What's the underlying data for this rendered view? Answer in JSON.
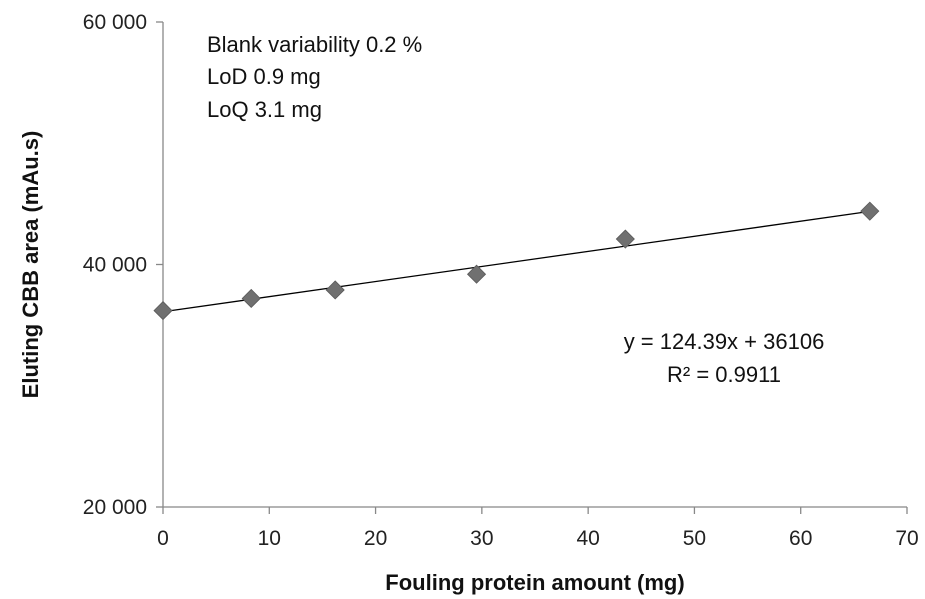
{
  "chart_data": {
    "type": "scatter",
    "xlabel": "Fouling protein amount (mg)",
    "ylabel": "Eluting CBB area (mAu.s)",
    "xlim": [
      0,
      70
    ],
    "ylim": [
      20000,
      60000
    ],
    "x_ticks": [
      0,
      10,
      20,
      30,
      40,
      50,
      60,
      70
    ],
    "x_tick_labels": [
      "0",
      "10",
      "20",
      "30",
      "40",
      "50",
      "60",
      "70"
    ],
    "y_ticks": [
      20000,
      40000,
      60000
    ],
    "y_tick_labels": [
      "20 000",
      "40 000",
      "60 000"
    ],
    "grid": false,
    "legend": "none",
    "series": [
      {
        "x": [
          0,
          8.3,
          16.2,
          29.5,
          43.5,
          66.5
        ],
        "y": [
          36200,
          37200,
          37900,
          39200,
          42100,
          44400
        ],
        "marker": "diamond",
        "color": "#707070"
      }
    ],
    "trendline": {
      "slope": 124.39,
      "intercept": 36106,
      "x_range": [
        0,
        66.5
      ],
      "color": "#000000"
    },
    "annotations": {
      "blank_variability": "Blank variability 0.2 %",
      "lod": "LoD 0.9 mg",
      "loq": "LoQ 3.1 mg",
      "equation": "y = 124.39x + 36106",
      "r_squared": "R² = 0.9911"
    }
  }
}
